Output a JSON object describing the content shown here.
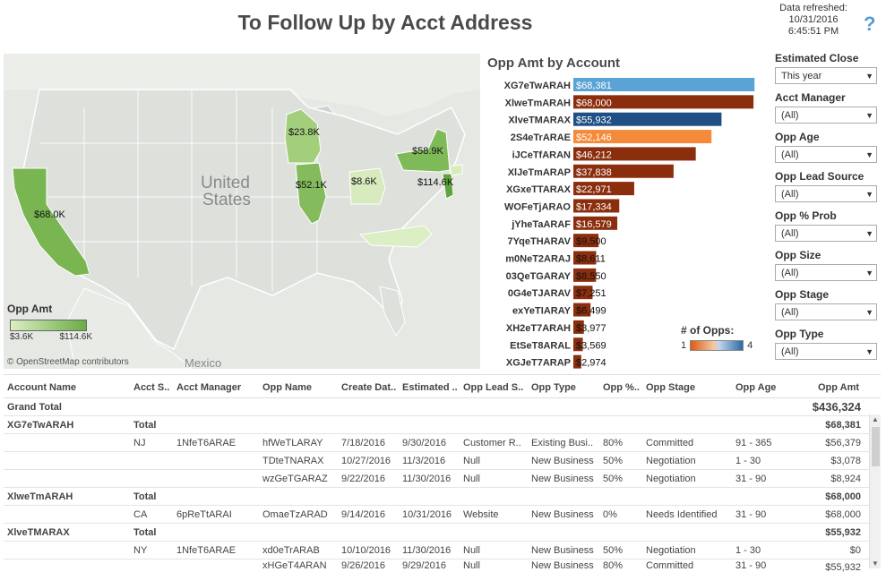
{
  "title": "To Follow Up by Acct Address",
  "refresh": {
    "label": "Data refreshed:",
    "date": "10/31/2016",
    "time": "6:45:51 PM"
  },
  "help_label": "?",
  "map": {
    "country_label_1": "United",
    "country_label_2": "States",
    "mexico_label": "Mexico",
    "legend_title": "Opp Amt",
    "legend_min": "$3.6K",
    "legend_max": "$114.6K",
    "attribution": "© OpenStreetMap contributors",
    "state_labels": [
      "$23.8K",
      "$58.9K",
      "$52.1K",
      "$8.6K",
      "$114.6K",
      "$68.0K"
    ],
    "fill_colors": {
      "low": "#dceec3",
      "high": "#6aac45"
    }
  },
  "bar_title": "Opp Amt by Account",
  "opps_legend": {
    "title": "# of Opps:",
    "min": "1",
    "max": "4"
  },
  "chart_data": {
    "type": "bar",
    "title": "Opp Amt by Account",
    "categories": [
      "XG7eTwARAH",
      "XlweTmARAH",
      "XlveTMARAX",
      "2S4eTrARAE",
      "iJCeTfARAN",
      "XlJeTmARAP",
      "XGxeTTARAX",
      "WOFeTjARAO",
      "jYheTaARAF",
      "7YqeTHARAV",
      "m0NeT2ARAJ",
      "03QeTGARAY",
      "0G4eTJARAV",
      "exYeTIARAY",
      "XH2eT7ARAH",
      "EtSeT8ARAL",
      "XGJeT7ARAP"
    ],
    "values": [
      68381,
      68000,
      55932,
      52146,
      46212,
      37838,
      22971,
      17334,
      16579,
      9500,
      8611,
      8550,
      7251,
      6499,
      3977,
      3569,
      2974
    ],
    "value_labels": [
      "$68,381",
      "$68,000",
      "$55,932",
      "$52,146",
      "$46,212",
      "$37,838",
      "$22,971",
      "$17,334",
      "$16,579",
      "$9,500",
      "$8,611",
      "$8,550",
      "$7,251",
      "$6,499",
      "$3,977",
      "$3,569",
      "$2,974"
    ],
    "colors": [
      "#5ba3d4",
      "#8b2e0d",
      "#1f4f84",
      "#f58b3a",
      "#8b2e0d",
      "#8b2e0d",
      "#8b2e0d",
      "#8b2e0d",
      "#8b2e0d",
      "#8b2e0d",
      "#8b2e0d",
      "#8b2e0d",
      "#8b2e0d",
      "#8b2e0d",
      "#8b2e0d",
      "#8b2e0d",
      "#8b2e0d"
    ],
    "xlim": [
      0,
      70000
    ]
  },
  "filters": [
    {
      "label": "Estimated Close",
      "value": "This year"
    },
    {
      "label": "Acct Manager",
      "value": "(All)"
    },
    {
      "label": "Opp Age",
      "value": "(All)"
    },
    {
      "label": "Opp Lead Source",
      "value": "(All)"
    },
    {
      "label": "Opp % Prob",
      "value": "(All)"
    },
    {
      "label": "Opp Size",
      "value": "(All)"
    },
    {
      "label": "Opp Stage",
      "value": "(All)"
    },
    {
      "label": "Opp Type",
      "value": "(All)"
    }
  ],
  "table": {
    "headers": [
      "Account Name",
      "Acct S..",
      "Acct Manager",
      "Opp Name",
      "Create Dat..",
      "Estimated ..",
      "Opp Lead S..",
      "Opp Type",
      "Opp %..",
      "Opp Stage",
      "Opp Age",
      "Opp Amt"
    ],
    "grand_total_label": "Grand Total",
    "grand_total_value": "$436,324",
    "total_label": "Total",
    "groups": [
      {
        "account": "XG7eTwARAH",
        "total": "$68,381",
        "rows": [
          {
            "state": "NJ",
            "manager": "1NfeT6ARAE",
            "opp": "hfWeTLARAY",
            "create": "7/18/2016",
            "est": "9/30/2016",
            "lead": "Customer R..",
            "type": "Existing Busi..",
            "prob": "80%",
            "stage": "Committed",
            "age": "91 - 365",
            "amt": "$56,379"
          },
          {
            "state": "",
            "manager": "",
            "opp": "TDteTNARAX",
            "create": "10/27/2016",
            "est": "11/3/2016",
            "lead": "Null",
            "type": "New Business",
            "prob": "50%",
            "stage": "Negotiation",
            "age": "1 - 30",
            "amt": "$3,078"
          },
          {
            "state": "",
            "manager": "",
            "opp": "wzGeTGARAZ",
            "create": "9/22/2016",
            "est": "11/30/2016",
            "lead": "Null",
            "type": "New Business",
            "prob": "50%",
            "stage": "Negotiation",
            "age": "31 - 90",
            "amt": "$8,924"
          }
        ]
      },
      {
        "account": "XlweTmARAH",
        "total": "$68,000",
        "rows": [
          {
            "state": "CA",
            "manager": "6pReTtARAI",
            "opp": "OmaeTzARAD",
            "create": "9/14/2016",
            "est": "10/31/2016",
            "lead": "Website",
            "type": "New Business",
            "prob": "0%",
            "stage": "Needs Identified",
            "age": "31 - 90",
            "amt": "$68,000"
          }
        ]
      },
      {
        "account": "XlveTMARAX",
        "total": "$55,932",
        "rows": [
          {
            "state": "NY",
            "manager": "1NfeT6ARAE",
            "opp": "xd0eTrARAB",
            "create": "10/10/2016",
            "est": "11/30/2016",
            "lead": "Null",
            "type": "New Business",
            "prob": "50%",
            "stage": "Negotiation",
            "age": "1 - 30",
            "amt": "$0"
          },
          {
            "state": "",
            "manager": "",
            "opp": "xHGeT4ARAN",
            "create": "9/26/2016",
            "est": "9/29/2016",
            "lead": "Null",
            "type": "New Business",
            "prob": "80%",
            "stage": "Committed",
            "age": "31 - 90",
            "amt": "$55,932"
          }
        ]
      }
    ]
  }
}
